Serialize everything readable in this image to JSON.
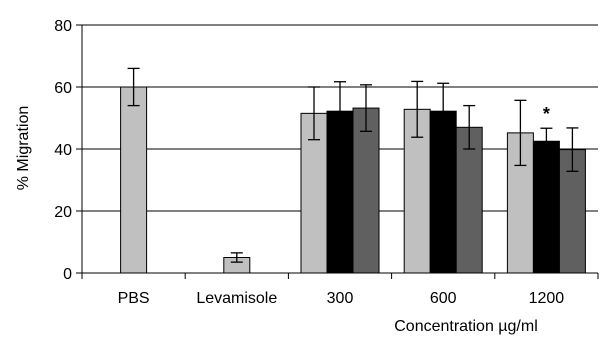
{
  "chart_data": {
    "type": "bar",
    "title": "",
    "xlabel": "Concentration µg/ml",
    "ylabel": "% Migration",
    "ylim": [
      0,
      80
    ],
    "yticks": [
      0,
      20,
      40,
      60,
      80
    ],
    "grid": "horizontal",
    "categories": [
      "PBS",
      "Levamisole",
      "300",
      "600",
      "1200"
    ],
    "series": [
      {
        "color": "#c0c0c0",
        "values": [
          60,
          5,
          51.5,
          52.8,
          45.2
        ],
        "errors": [
          6,
          1.5,
          8.5,
          9,
          10.5
        ]
      },
      {
        "color": "#000000",
        "values": [
          null,
          null,
          52.2,
          52.2,
          42.5
        ],
        "errors": [
          null,
          null,
          9.5,
          9,
          4.2
        ]
      },
      {
        "color": "#606060",
        "values": [
          null,
          null,
          53.2,
          47,
          39.8
        ],
        "errors": [
          null,
          null,
          7.5,
          7,
          7
        ]
      }
    ],
    "annotations": [
      {
        "text": "*",
        "category": "1200",
        "series_index": 1
      }
    ]
  }
}
